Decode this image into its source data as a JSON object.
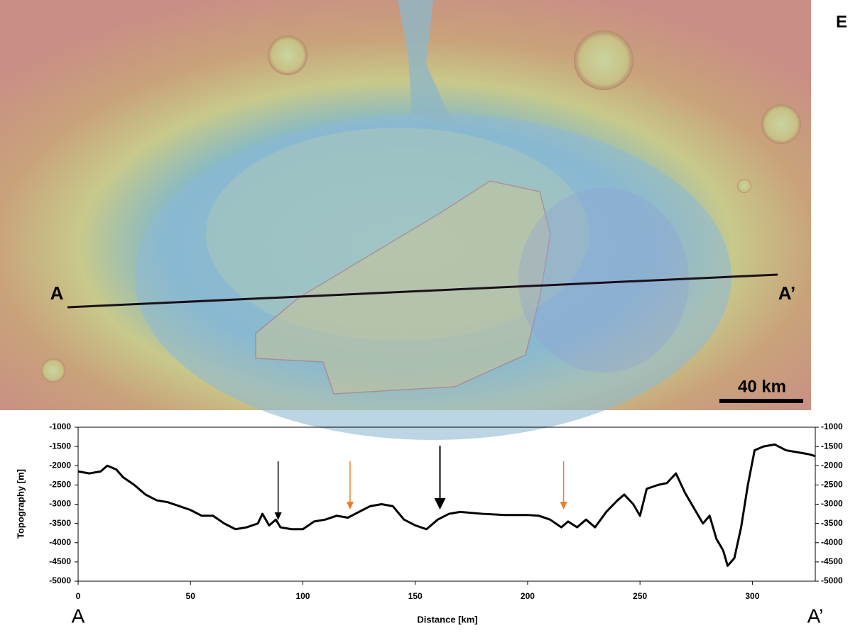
{
  "figure_label": "E",
  "scale_bar": "40 km",
  "profile_start": "A",
  "profile_end": "A’",
  "chart_data": {
    "type": "line",
    "xlabel": "Distance [km]",
    "ylabel": "Topography [m]",
    "xlim": [
      0,
      328
    ],
    "xticks": [
      0,
      50,
      100,
      150,
      200,
      250,
      300
    ],
    "ylim": [
      -5000,
      -1000
    ],
    "yticks": [
      -1000,
      -1500,
      -2000,
      -2500,
      -3000,
      -3500,
      -4000,
      -4500,
      -5000
    ],
    "y2lim": [
      -5000,
      -1000
    ],
    "y2ticks": [
      -1000,
      -1500,
      -2000,
      -2500,
      -3000,
      -3500,
      -4000,
      -4500,
      -5000
    ],
    "arrows": [
      {
        "x": 89,
        "color": "#000000"
      },
      {
        "x": 121,
        "color": "#f07c2a"
      },
      {
        "x": 161,
        "color": "#000000"
      },
      {
        "x": 216,
        "color": "#f07c2a"
      }
    ],
    "series": [
      {
        "color": "#000000",
        "x": [
          0,
          5,
          10,
          13,
          17,
          20,
          25,
          30,
          35,
          40,
          45,
          50,
          55,
          60,
          65,
          70,
          75,
          80,
          82,
          85,
          88,
          90,
          95,
          100,
          105,
          110,
          115,
          120,
          125,
          130,
          135,
          140,
          145,
          150,
          155,
          160,
          165,
          170,
          180,
          190,
          200,
          205,
          210,
          215,
          218,
          222,
          226,
          230,
          235,
          240,
          243,
          247,
          250,
          253,
          258,
          262,
          266,
          270,
          275,
          278,
          281,
          284,
          287,
          289,
          292,
          295,
          298,
          301,
          305,
          310,
          315,
          320,
          325,
          328
        ],
        "values": [
          -2150,
          -2200,
          -2150,
          -2000,
          -2100,
          -2300,
          -2500,
          -2750,
          -2900,
          -2950,
          -3050,
          -3150,
          -3300,
          -3300,
          -3500,
          -3650,
          -3600,
          -3500,
          -3250,
          -3550,
          -3400,
          -3600,
          -3650,
          -3650,
          -3450,
          -3400,
          -3300,
          -3350,
          -3200,
          -3050,
          -3000,
          -3050,
          -3400,
          -3550,
          -3650,
          -3400,
          -3250,
          -3200,
          -3250,
          -3280,
          -3280,
          -3300,
          -3400,
          -3600,
          -3450,
          -3600,
          -3400,
          -3600,
          -3200,
          -2900,
          -2750,
          -3000,
          -3300,
          -2600,
          -2500,
          -2450,
          -2200,
          -2700,
          -3200,
          -3500,
          -3300,
          -3900,
          -4200,
          -4600,
          -4400,
          -3600,
          -2500,
          -1600,
          -1500,
          -1450,
          -1600,
          -1650,
          -1700,
          -1750
        ]
      }
    ]
  }
}
